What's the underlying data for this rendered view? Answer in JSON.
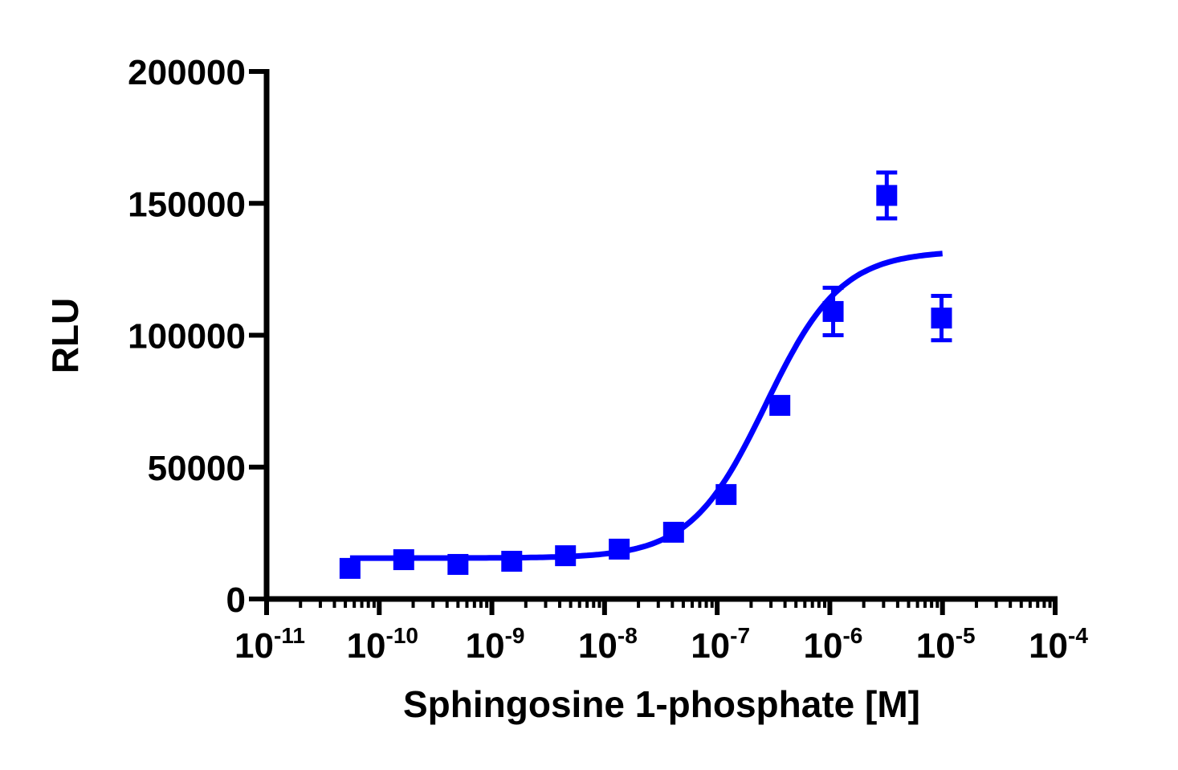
{
  "chart_data": {
    "type": "scatter",
    "title": "",
    "xlabel": "Sphingosine 1-phosphate [M]",
    "ylabel": "RLU",
    "x_scale": "log",
    "xlim": [
      1e-11,
      0.0001
    ],
    "ylim": [
      0,
      200000
    ],
    "grid": false,
    "x_tick_labels": [
      {
        "base": "10",
        "exp": "-11"
      },
      {
        "base": "10",
        "exp": "-10"
      },
      {
        "base": "10",
        "exp": "-9"
      },
      {
        "base": "10",
        "exp": "-8"
      },
      {
        "base": "10",
        "exp": "-7"
      },
      {
        "base": "10",
        "exp": "-6"
      },
      {
        "base": "10",
        "exp": "-5"
      },
      {
        "base": "10",
        "exp": "-4"
      }
    ],
    "y_tick_labels": [
      "0",
      "50000",
      "100000",
      "150000",
      "200000"
    ],
    "y_ticks": [
      0,
      50000,
      100000,
      150000,
      200000
    ],
    "color": "#0000ff",
    "series": [
      {
        "marker": "square",
        "x": [
          5.5e-11,
          1.65e-10,
          5e-10,
          1.5e-09,
          4.5e-09,
          1.35e-08,
          4.1e-08,
          1.2e-07,
          3.6e-07,
          1.07e-06,
          3.2e-06,
          9.8e-06
        ],
        "y": [
          11600,
          14900,
          13100,
          14300,
          16400,
          18900,
          25300,
          39600,
          73400,
          109000,
          153000,
          106500
        ],
        "error": [
          0,
          0,
          0,
          0,
          0,
          0,
          0,
          0,
          0,
          9000,
          8700,
          8400
        ]
      }
    ],
    "fit": {
      "model": "four-parameter logistic",
      "bottom": 15500,
      "top": 132000,
      "ec50": 2.7e-07,
      "hill": 1.3,
      "x_range": [
        5.5e-11,
        1e-05
      ]
    }
  }
}
